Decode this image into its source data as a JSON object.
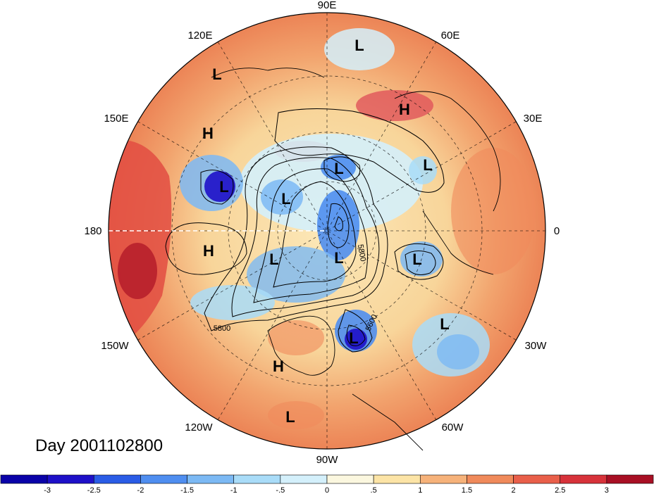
{
  "title": "Day 2001102800",
  "longitude_labels": [
    "90E",
    "60E",
    "30E",
    "0",
    "30W",
    "60W",
    "90W",
    "120W",
    "150W",
    "180",
    "150E",
    "120E"
  ],
  "pressure_centers": [
    "L",
    "L",
    "H",
    "H",
    "L",
    "L",
    "L",
    "L",
    "L",
    "L",
    "L",
    "L",
    "H",
    "H",
    "L",
    "L"
  ],
  "contour_labels": [
    "5800",
    "5600",
    "5800"
  ],
  "colorbar": {
    "ticks": [
      "-3",
      "-2.5",
      "-2",
      "-1.5",
      "-1",
      "-.5",
      "0",
      ".5",
      "1",
      "1.5",
      "2",
      "2.5",
      "3"
    ],
    "colors": [
      "#1e10c8",
      "#2a5ce6",
      "#4f8ef0",
      "#7cb9f4",
      "#a9dcf8",
      "#d4f0fb",
      "#fbf7df",
      "#fce4a6",
      "#f6b27a",
      "#f08a5b",
      "#e95f4a",
      "#d7323a",
      "#a80f24"
    ]
  }
}
